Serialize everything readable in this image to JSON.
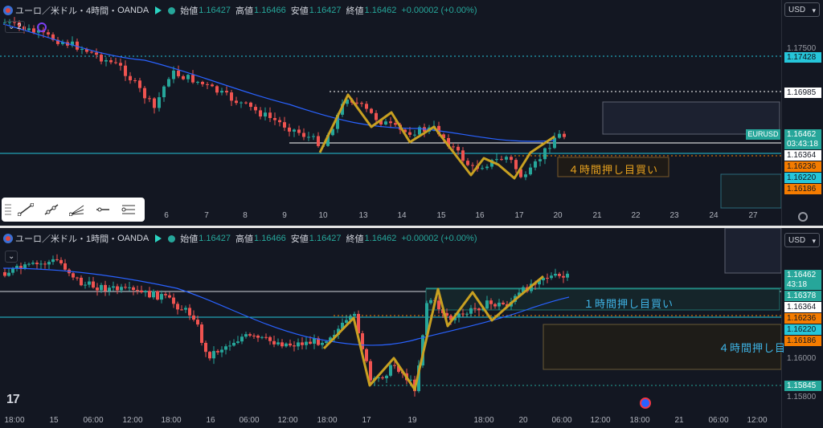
{
  "common": {
    "symbol": "ユーロ／米ドル",
    "open_label": "始値",
    "open": "1.16427",
    "high_label": "高値",
    "high": "1.16466",
    "low_label": "安値",
    "low": "1.16427",
    "close_label": "終値",
    "close": "1.16462",
    "change": "+0.00002 (+0.00%)",
    "currency": "USD"
  },
  "top": {
    "interval": "4時間",
    "source": "OANDA",
    "indicator_count": "2",
    "ticker_tag": "EURUSD",
    "price_ticks": [
      "1.17500"
    ],
    "price_tags": {
      "p17428": "1.17428",
      "p16985": "1.16985",
      "last": "1.16462",
      "countdown": "03:43:18",
      "p16364": "1.16364",
      "p16236": "1.16236",
      "p16220": "1.16220",
      "p16186": "1.16186"
    },
    "zone_label": "４時間押し目買い",
    "x_ticks": [
      "6",
      "7",
      "8",
      "9",
      "10",
      "13",
      "14",
      "15",
      "16",
      "17",
      "20",
      "21",
      "22",
      "23",
      "24",
      "27"
    ]
  },
  "bottom": {
    "interval": "1時間",
    "source": "OANDA",
    "price_ticks": [
      "1.16000",
      "1.15800"
    ],
    "price_tags": {
      "last": "1.16462",
      "countdown": "43:18",
      "p16378": "1.16378",
      "p16364": "1.16364",
      "p16236": "1.16236",
      "p16220": "1.16220",
      "p16186": "1.16186",
      "p15845": "1.15845"
    },
    "zone_label_1h": "１時間押し目買い",
    "zone_label_4h": "４時間押し目",
    "x_ticks": [
      "18:00",
      "15",
      "06:00",
      "12:00",
      "18:00",
      "16",
      "06:00",
      "12:00",
      "18:00",
      "17",
      "19",
      "18:00",
      "20",
      "06:00",
      "12:00",
      "18:00",
      "21",
      "06:00",
      "12:00"
    ]
  },
  "colors": {
    "up": "#26a69a",
    "down": "#ef5350",
    "ma": "#2962ff",
    "zigzag": "#c8a021",
    "bg": "#131722"
  }
}
